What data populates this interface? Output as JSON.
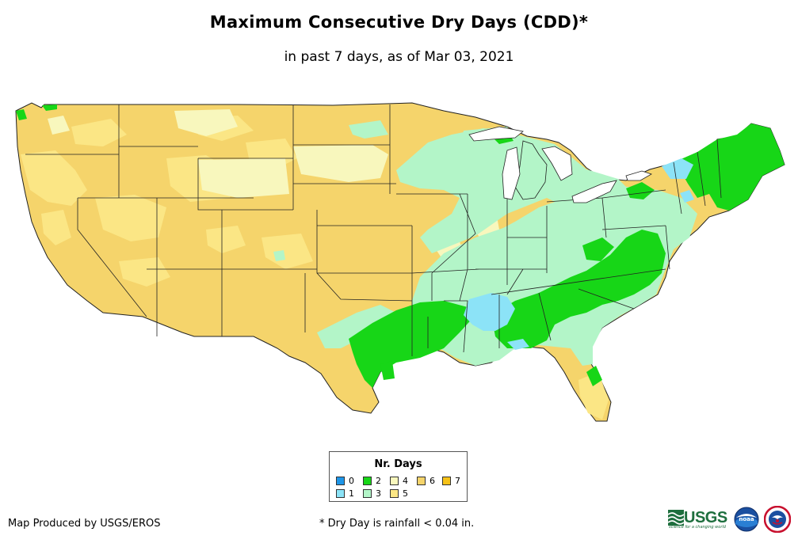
{
  "title": "Maximum Consecutive Dry Days (CDD)*",
  "subtitle": "in past 7 days, as of Mar 03, 2021",
  "legend": {
    "title": "Nr. Days",
    "items": [
      {
        "label": "0",
        "color": "#1e96e8"
      },
      {
        "label": "1",
        "color": "#8ce3f7"
      },
      {
        "label": "2",
        "color": "#17d617"
      },
      {
        "label": "3",
        "color": "#b3f5c8"
      },
      {
        "label": "4",
        "color": "#f8f7bd"
      },
      {
        "label": "5",
        "color": "#fbe685"
      },
      {
        "label": "6",
        "color": "#f5d46b"
      },
      {
        "label": "7",
        "color": "#f6c218"
      }
    ]
  },
  "credit": "Map Produced by USGS/EROS",
  "footnote": "* Dry Day is rainfall < 0.04 in.",
  "logos": {
    "usgs": "USGS",
    "usgs_tagline": "science for a changing world",
    "noaa": "noaa",
    "nws_icon": "nws-logo-icon"
  }
}
